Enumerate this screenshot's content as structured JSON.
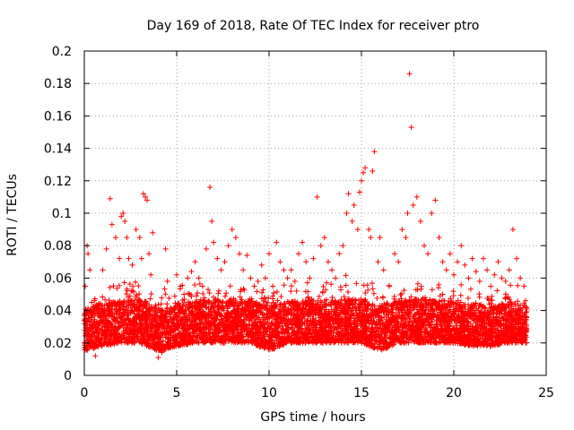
{
  "chart_data": {
    "type": "scatter",
    "title": "Day 169 of 2018, Rate Of TEC Index for receiver ptro",
    "xlabel": "GPS time / hours",
    "ylabel": "ROTI / TECUs",
    "xlim": [
      0,
      25
    ],
    "ylim": [
      0,
      0.2
    ],
    "xticks": [
      "0",
      "5",
      "10",
      "15",
      "20",
      "25"
    ],
    "yticks": [
      "0",
      "0.02",
      "0.04",
      "0.06",
      "0.08",
      "0.1",
      "0.12",
      "0.14",
      "0.16",
      "0.18",
      "0.2"
    ],
    "grid": true,
    "marker": "+",
    "color": "#ff0000",
    "series": [
      {
        "points": [
          [
            0.05,
            0.055
          ],
          [
            0.1,
            0.035
          ],
          [
            0.15,
            0.08
          ],
          [
            0.2,
            0.075
          ],
          [
            0.3,
            0.065
          ],
          [
            0.4,
            0.045
          ],
          [
            0.5,
            0.03
          ],
          [
            0.6,
            0.012
          ],
          [
            0.8,
            0.025
          ],
          [
            1.0,
            0.065
          ],
          [
            1.2,
            0.078
          ],
          [
            1.4,
            0.109
          ],
          [
            1.5,
            0.093
          ],
          [
            1.7,
            0.085
          ],
          [
            1.9,
            0.072
          ],
          [
            2.0,
            0.098
          ],
          [
            2.1,
            0.1
          ],
          [
            2.2,
            0.095
          ],
          [
            2.3,
            0.085
          ],
          [
            2.4,
            0.072
          ],
          [
            2.6,
            0.068
          ],
          [
            2.8,
            0.09
          ],
          [
            3.0,
            0.085
          ],
          [
            3.1,
            0.072
          ],
          [
            3.2,
            0.112
          ],
          [
            3.3,
            0.11
          ],
          [
            3.4,
            0.108
          ],
          [
            3.5,
            0.075
          ],
          [
            3.6,
            0.062
          ],
          [
            3.7,
            0.088
          ],
          [
            3.8,
            0.035
          ],
          [
            4.0,
            0.011
          ],
          [
            4.2,
            0.014
          ],
          [
            4.4,
            0.078
          ],
          [
            4.5,
            0.058
          ],
          [
            4.8,
            0.04
          ],
          [
            5.0,
            0.062
          ],
          [
            5.2,
            0.055
          ],
          [
            5.4,
            0.05
          ],
          [
            5.6,
            0.06
          ],
          [
            5.8,
            0.064
          ],
          [
            6.0,
            0.07
          ],
          [
            6.2,
            0.06
          ],
          [
            6.4,
            0.055
          ],
          [
            6.6,
            0.078
          ],
          [
            6.8,
            0.116
          ],
          [
            6.9,
            0.095
          ],
          [
            7.0,
            0.082
          ],
          [
            7.2,
            0.072
          ],
          [
            7.4,
            0.065
          ],
          [
            7.6,
            0.07
          ],
          [
            7.8,
            0.08
          ],
          [
            8.0,
            0.09
          ],
          [
            8.2,
            0.085
          ],
          [
            8.4,
            0.075
          ],
          [
            8.6,
            0.065
          ],
          [
            8.8,
            0.074
          ],
          [
            9.0,
            0.06
          ],
          [
            9.2,
            0.055
          ],
          [
            9.4,
            0.058
          ],
          [
            9.6,
            0.068
          ],
          [
            9.8,
            0.06
          ],
          [
            10.0,
            0.075
          ],
          [
            10.2,
            0.055
          ],
          [
            10.4,
            0.082
          ],
          [
            10.6,
            0.07
          ],
          [
            10.8,
            0.065
          ],
          [
            11.0,
            0.06
          ],
          [
            11.2,
            0.065
          ],
          [
            11.4,
            0.058
          ],
          [
            11.6,
            0.075
          ],
          [
            11.8,
            0.082
          ],
          [
            12.0,
            0.07
          ],
          [
            12.2,
            0.06
          ],
          [
            12.4,
            0.072
          ],
          [
            12.6,
            0.11
          ],
          [
            12.8,
            0.08
          ],
          [
            13.0,
            0.085
          ],
          [
            13.2,
            0.07
          ],
          [
            13.4,
            0.065
          ],
          [
            13.6,
            0.06
          ],
          [
            13.8,
            0.075
          ],
          [
            14.0,
            0.08
          ],
          [
            14.2,
            0.1
          ],
          [
            14.3,
            0.112
          ],
          [
            14.5,
            0.095
          ],
          [
            14.6,
            0.105
          ],
          [
            14.8,
            0.09
          ],
          [
            14.9,
            0.113
          ],
          [
            15.0,
            0.12
          ],
          [
            15.1,
            0.125
          ],
          [
            15.2,
            0.128
          ],
          [
            15.4,
            0.09
          ],
          [
            15.5,
            0.085
          ],
          [
            15.6,
            0.126
          ],
          [
            15.7,
            0.138
          ],
          [
            15.9,
            0.07
          ],
          [
            16.0,
            0.085
          ],
          [
            16.2,
            0.065
          ],
          [
            16.5,
            0.055
          ],
          [
            16.8,
            0.075
          ],
          [
            17.0,
            0.07
          ],
          [
            17.2,
            0.09
          ],
          [
            17.4,
            0.085
          ],
          [
            17.5,
            0.1
          ],
          [
            17.6,
            0.186
          ],
          [
            17.7,
            0.153
          ],
          [
            17.8,
            0.105
          ],
          [
            18.0,
            0.11
          ],
          [
            18.2,
            0.095
          ],
          [
            18.4,
            0.08
          ],
          [
            18.6,
            0.075
          ],
          [
            18.8,
            0.1
          ],
          [
            19.0,
            0.108
          ],
          [
            19.2,
            0.085
          ],
          [
            19.4,
            0.07
          ],
          [
            19.6,
            0.065
          ],
          [
            19.8,
            0.075
          ],
          [
            20.0,
            0.062
          ],
          [
            20.2,
            0.07
          ],
          [
            20.4,
            0.08
          ],
          [
            20.6,
            0.068
          ],
          [
            20.8,
            0.06
          ],
          [
            21.0,
            0.072
          ],
          [
            21.2,
            0.064
          ],
          [
            21.4,
            0.058
          ],
          [
            21.6,
            0.072
          ],
          [
            21.8,
            0.065
          ],
          [
            22.0,
            0.055
          ],
          [
            22.2,
            0.062
          ],
          [
            22.4,
            0.07
          ],
          [
            22.6,
            0.06
          ],
          [
            22.8,
            0.058
          ],
          [
            23.0,
            0.065
          ],
          [
            23.2,
            0.09
          ],
          [
            23.4,
            0.072
          ],
          [
            23.6,
            0.06
          ],
          [
            23.8,
            0.055
          ]
        ]
      }
    ],
    "dense_band": [
      [
        0,
        0.015,
        0.055
      ],
      [
        1,
        0.018,
        0.058
      ],
      [
        2,
        0.02,
        0.06
      ],
      [
        3,
        0.02,
        0.062
      ],
      [
        4,
        0.015,
        0.055
      ],
      [
        5,
        0.018,
        0.058
      ],
      [
        6,
        0.02,
        0.06
      ],
      [
        7,
        0.02,
        0.06
      ],
      [
        8,
        0.02,
        0.06
      ],
      [
        9,
        0.02,
        0.06
      ],
      [
        10,
        0.015,
        0.058
      ],
      [
        11,
        0.02,
        0.06
      ],
      [
        12,
        0.02,
        0.06
      ],
      [
        13,
        0.02,
        0.06
      ],
      [
        14,
        0.02,
        0.062
      ],
      [
        15,
        0.02,
        0.062
      ],
      [
        16,
        0.015,
        0.058
      ],
      [
        17,
        0.02,
        0.06
      ],
      [
        18,
        0.02,
        0.062
      ],
      [
        19,
        0.02,
        0.06
      ],
      [
        20,
        0.02,
        0.06
      ],
      [
        21,
        0.018,
        0.058
      ],
      [
        22,
        0.018,
        0.056
      ],
      [
        23,
        0.02,
        0.058
      ],
      [
        24,
        0.02,
        0.055
      ]
    ]
  }
}
